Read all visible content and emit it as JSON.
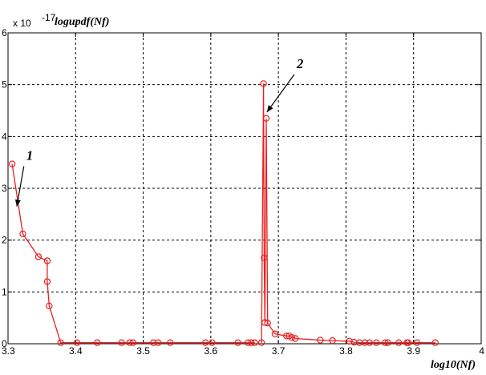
{
  "chart_data": {
    "type": "line",
    "title": "",
    "ylabel": "logupdf(Nf)",
    "xlabel": "log10(Nf)",
    "y_multiplier_label": "x 10",
    "y_multiplier_exponent": "-17",
    "xlim": [
      3.3,
      4.0
    ],
    "ylim": [
      0,
      6
    ],
    "grid": true,
    "x_ticks": [
      "3.3",
      "3.4",
      "3.5",
      "3.6",
      "3.7",
      "3.8",
      "3.9",
      "4"
    ],
    "y_ticks": [
      "0",
      "1",
      "2",
      "3",
      "4",
      "5",
      "6"
    ],
    "line_color": "#e82020",
    "series": [
      {
        "name": "1",
        "points": [
          [
            3.306,
            3.47
          ],
          [
            3.322,
            2.12
          ],
          [
            3.345,
            1.68
          ],
          [
            3.358,
            1.6
          ],
          [
            3.358,
            1.2
          ],
          [
            3.361,
            0.73
          ],
          [
            3.378,
            0.02
          ],
          [
            3.402,
            0.02
          ],
          [
            3.432,
            0.02
          ],
          [
            3.468,
            0.02
          ],
          [
            3.48,
            0.02
          ],
          [
            3.485,
            0.02
          ],
          [
            3.515,
            0.02
          ],
          [
            3.522,
            0.02
          ],
          [
            3.54,
            0.02
          ],
          [
            3.592,
            0.02
          ],
          [
            3.602,
            0.02
          ],
          [
            3.64,
            0.02
          ],
          [
            3.655,
            0.02
          ],
          [
            3.66,
            0.02
          ],
          [
            3.665,
            0.02
          ]
        ]
      },
      {
        "name": "2",
        "points": [
          [
            3.675,
            0.02
          ],
          [
            3.678,
            5.02
          ],
          [
            3.679,
            1.66
          ],
          [
            3.68,
            0.41
          ],
          [
            3.682,
            4.35
          ],
          [
            3.684,
            0.4
          ],
          [
            3.695,
            0.19
          ],
          [
            3.712,
            0.15
          ],
          [
            3.716,
            0.15
          ],
          [
            3.72,
            0.12
          ],
          [
            3.725,
            0.1
          ],
          [
            3.762,
            0.07
          ],
          [
            3.78,
            0.06
          ],
          [
            3.805,
            0.05
          ],
          [
            3.812,
            0.03
          ],
          [
            3.82,
            0.02
          ],
          [
            3.828,
            0.02
          ],
          [
            3.835,
            0.02
          ],
          [
            3.845,
            0.02
          ],
          [
            3.858,
            0.02
          ],
          [
            3.862,
            0.02
          ],
          [
            3.878,
            0.02
          ],
          [
            3.89,
            0.02
          ],
          [
            3.892,
            0.02
          ],
          [
            3.905,
            0.02
          ],
          [
            3.932,
            0.02
          ]
        ]
      }
    ],
    "annotations": [
      {
        "label": "1",
        "text_at": [
          3.327,
          3.55
        ],
        "arrow_to": [
          3.313,
          2.65
        ]
      },
      {
        "label": "2",
        "text_at": [
          3.727,
          5.32
        ],
        "arrow_to": [
          3.683,
          4.47
        ]
      }
    ]
  }
}
